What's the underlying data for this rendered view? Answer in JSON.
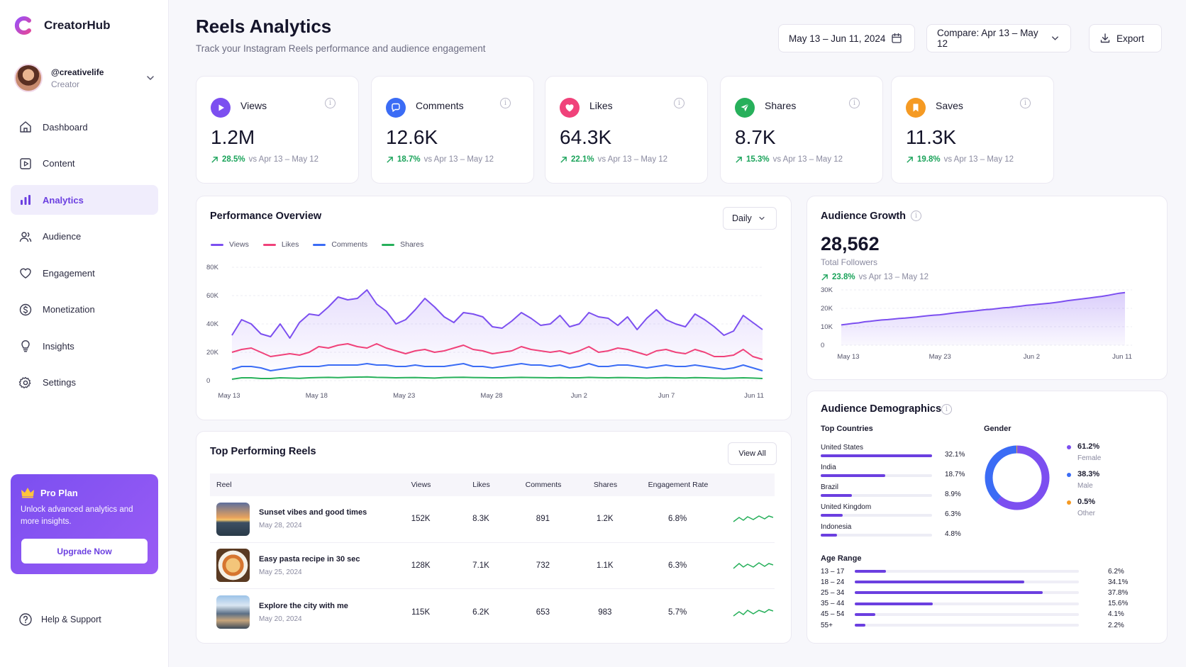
{
  "app": {
    "name": "CreatorHub"
  },
  "colors": {
    "accent": "#6b3fe0",
    "views": "#7c4ff0",
    "likes": "#f0427a",
    "comments": "#3b6cf5",
    "shares": "#27b05b",
    "saves": "#f59a23",
    "positive": "#1aa35a"
  },
  "profile": {
    "handle": "@creativelife",
    "role": "Creator"
  },
  "sidebar": {
    "items": [
      {
        "label": "Dashboard",
        "icon": "home-icon"
      },
      {
        "label": "Content",
        "icon": "play-square-icon"
      },
      {
        "label": "Analytics",
        "icon": "bar-chart-icon",
        "active": true
      },
      {
        "label": "Audience",
        "icon": "users-icon"
      },
      {
        "label": "Engagement",
        "icon": "heart-icon"
      },
      {
        "label": "Monetization",
        "icon": "dollar-icon"
      },
      {
        "label": "Insights",
        "icon": "lightbulb-icon"
      },
      {
        "label": "Settings",
        "icon": "gear-icon"
      }
    ],
    "help": "Help & Support"
  },
  "pro_plan": {
    "title": "Pro Plan",
    "description": "Unlock advanced analytics and more insights.",
    "button": "Upgrade Now"
  },
  "header": {
    "title": "Reels Analytics",
    "subtitle": "Track your Instagram Reels performance and audience engagement",
    "date_range": "May 13 – Jun 11, 2024",
    "compare": "Compare: Apr 13 – May 12",
    "export": "Export"
  },
  "kpis": [
    {
      "label": "Views",
      "value": "1.2M",
      "delta": "28.5%",
      "compare": "vs Apr 13 – May 12"
    },
    {
      "label": "Comments",
      "value": "12.6K",
      "delta": "18.7%",
      "compare": "vs Apr 13 – May 12"
    },
    {
      "label": "Likes",
      "value": "64.3K",
      "delta": "22.1%",
      "compare": "vs Apr 13 – May 12"
    },
    {
      "label": "Shares",
      "value": "8.7K",
      "delta": "15.3%",
      "compare": "vs Apr 13 – May 12"
    },
    {
      "label": "Saves",
      "value": "11.3K",
      "delta": "19.8%",
      "compare": "vs Apr 13 – May 12"
    }
  ],
  "performance": {
    "title": "Performance Overview",
    "period": "Daily",
    "chart_data": {
      "type": "line",
      "x_ticks": [
        "May 13",
        "May 18",
        "May 23",
        "May 28",
        "Jun 2",
        "Jun 7",
        "Jun 11"
      ],
      "y_ticks": [
        "80K",
        "60K",
        "40K",
        "20K",
        "0"
      ],
      "ylim": [
        0,
        80000
      ],
      "series": [
        {
          "name": "Views",
          "color": "#7c4ff0",
          "values": [
            32000,
            43000,
            40000,
            33000,
            31000,
            40000,
            30000,
            41000,
            47000,
            46000,
            52000,
            59000,
            57000,
            58000,
            64000,
            54000,
            49000,
            40000,
            43000,
            50000,
            58000,
            52000,
            45000,
            41000,
            48000,
            47000,
            45000,
            38000,
            37000,
            42000,
            48000,
            44000,
            39000,
            40000,
            46000,
            38000,
            40000,
            48000,
            45000,
            44000,
            39000,
            45000,
            36000,
            44000,
            50000,
            43000,
            40000,
            38000,
            47000,
            43000,
            38000,
            32000,
            35000,
            46000,
            41000,
            36000
          ]
        },
        {
          "name": "Likes",
          "color": "#f0427a",
          "values": [
            20000,
            22000,
            23000,
            20000,
            17000,
            18000,
            19000,
            18000,
            20000,
            24000,
            23000,
            25000,
            26000,
            24000,
            23000,
            26000,
            23000,
            21000,
            19000,
            21000,
            22000,
            20000,
            21000,
            23000,
            25000,
            22000,
            21000,
            19000,
            20000,
            21000,
            24000,
            22000,
            21000,
            20000,
            21000,
            19000,
            21000,
            24000,
            20000,
            21000,
            23000,
            22000,
            20000,
            18000,
            21000,
            22000,
            20000,
            19000,
            22000,
            20000,
            17000,
            17000,
            18000,
            22000,
            17000,
            15000
          ]
        },
        {
          "name": "Comments",
          "color": "#3b6cf5",
          "values": [
            8000,
            10000,
            10000,
            9000,
            7000,
            8000,
            9000,
            10000,
            10000,
            10000,
            11000,
            11000,
            11000,
            11000,
            12000,
            11000,
            11000,
            10000,
            10000,
            11000,
            10000,
            10000,
            10000,
            11000,
            12000,
            10000,
            10000,
            9000,
            10000,
            11000,
            12000,
            11000,
            11000,
            10000,
            11000,
            9000,
            10000,
            12000,
            10000,
            10000,
            11000,
            11000,
            10000,
            9000,
            10000,
            11000,
            10000,
            10000,
            11000,
            10000,
            9000,
            8000,
            9000,
            11000,
            9000,
            7000
          ]
        },
        {
          "name": "Shares",
          "color": "#27b05b",
          "values": [
            1000,
            2000,
            2000,
            1500,
            1500,
            2000,
            1800,
            1600,
            2000,
            2200,
            2300,
            2100,
            2400,
            2500,
            2600,
            2300,
            2200,
            2000,
            2100,
            2200,
            2000,
            1800,
            2200,
            2300,
            2400,
            2200,
            2100,
            2000,
            2000,
            2200,
            2300,
            2200,
            2100,
            2000,
            2100,
            2000,
            2000,
            2300,
            2100,
            2000,
            2200,
            2100,
            2000,
            1800,
            2000,
            2100,
            2000,
            1900,
            2100,
            2000,
            1800,
            1700,
            1800,
            2000,
            1800,
            1500
          ]
        }
      ]
    }
  },
  "growth": {
    "title": "Audience Growth",
    "value": "28,562",
    "label": "Total Followers",
    "delta": "23.8%",
    "compare": "vs Apr 13 – May 12",
    "chart_data": {
      "type": "area",
      "x_ticks": [
        "May 13",
        "May 23",
        "Jun 2",
        "Jun 11"
      ],
      "y_ticks": [
        "30K",
        "20K",
        "10K",
        "0"
      ],
      "ylim": [
        0,
        30000
      ],
      "series": [
        {
          "color": "#7c4ff0",
          "values": [
            11000,
            11400,
            11800,
            12100,
            12700,
            13000,
            13400,
            13700,
            13900,
            14200,
            14500,
            14700,
            15000,
            15300,
            15700,
            16000,
            16300,
            16500,
            16900,
            17300,
            17700,
            18000,
            18300,
            18600,
            19000,
            19300,
            19500,
            19900,
            20300,
            20500,
            20900,
            21200,
            21600,
            21900,
            22200,
            22500,
            22800,
            23200,
            23600,
            24100,
            24500,
            24900,
            25300,
            25700,
            26100,
            26500,
            27000,
            27600,
            28200,
            28562
          ]
        }
      ]
    }
  },
  "top_reels": {
    "title": "Top Performing Reels",
    "view_all": "View All",
    "columns": [
      "Reel",
      "Views",
      "Likes",
      "Comments",
      "Shares",
      "Engagement Rate"
    ],
    "rows": [
      {
        "title": "Sunset vibes and good times",
        "date": "May 28, 2024",
        "views": "152K",
        "likes": "8.3K",
        "comments": "891",
        "shares": "1.2K",
        "engagement": "6.8%"
      },
      {
        "title": "Easy pasta recipe in 30 sec",
        "date": "May 25, 2024",
        "views": "128K",
        "likes": "7.1K",
        "comments": "732",
        "shares": "1.1K",
        "engagement": "6.3%"
      },
      {
        "title": "Explore the city with me",
        "date": "May 20, 2024",
        "views": "115K",
        "likes": "6.2K",
        "comments": "653",
        "shares": "983",
        "engagement": "5.7%"
      }
    ]
  },
  "demographics": {
    "title": "Audience Demographics",
    "countries_title": "Top Countries",
    "countries": [
      {
        "name": "United States",
        "pct": "32.1%",
        "value": 32.1
      },
      {
        "name": "India",
        "pct": "18.7%",
        "value": 18.7
      },
      {
        "name": "Brazil",
        "pct": "8.9%",
        "value": 8.9
      },
      {
        "name": "United Kingdom",
        "pct": "6.3%",
        "value": 6.3
      },
      {
        "name": "Indonesia",
        "pct": "4.8%",
        "value": 4.8
      }
    ],
    "gender_title": "Gender",
    "gender": [
      {
        "pct": "61.2%",
        "label": "Female",
        "value": 61.2,
        "color": "#7c4ff0"
      },
      {
        "pct": "38.3%",
        "label": "Male",
        "value": 38.3,
        "color": "#3b6cf5"
      },
      {
        "pct": "0.5%",
        "label": "Other",
        "value": 0.5,
        "color": "#f59a23"
      }
    ],
    "age_title": "Age Range",
    "ages": [
      {
        "range": "13 – 17",
        "pct": "6.2%",
        "value": 6.2
      },
      {
        "range": "18 – 24",
        "pct": "34.1%",
        "value": 34.1
      },
      {
        "range": "25 – 34",
        "pct": "37.8%",
        "value": 37.8
      },
      {
        "range": "35 – 44",
        "pct": "15.6%",
        "value": 15.6
      },
      {
        "range": "45 – 54",
        "pct": "4.1%",
        "value": 4.1
      },
      {
        "range": "55+",
        "pct": "2.2%",
        "value": 2.2
      }
    ]
  }
}
